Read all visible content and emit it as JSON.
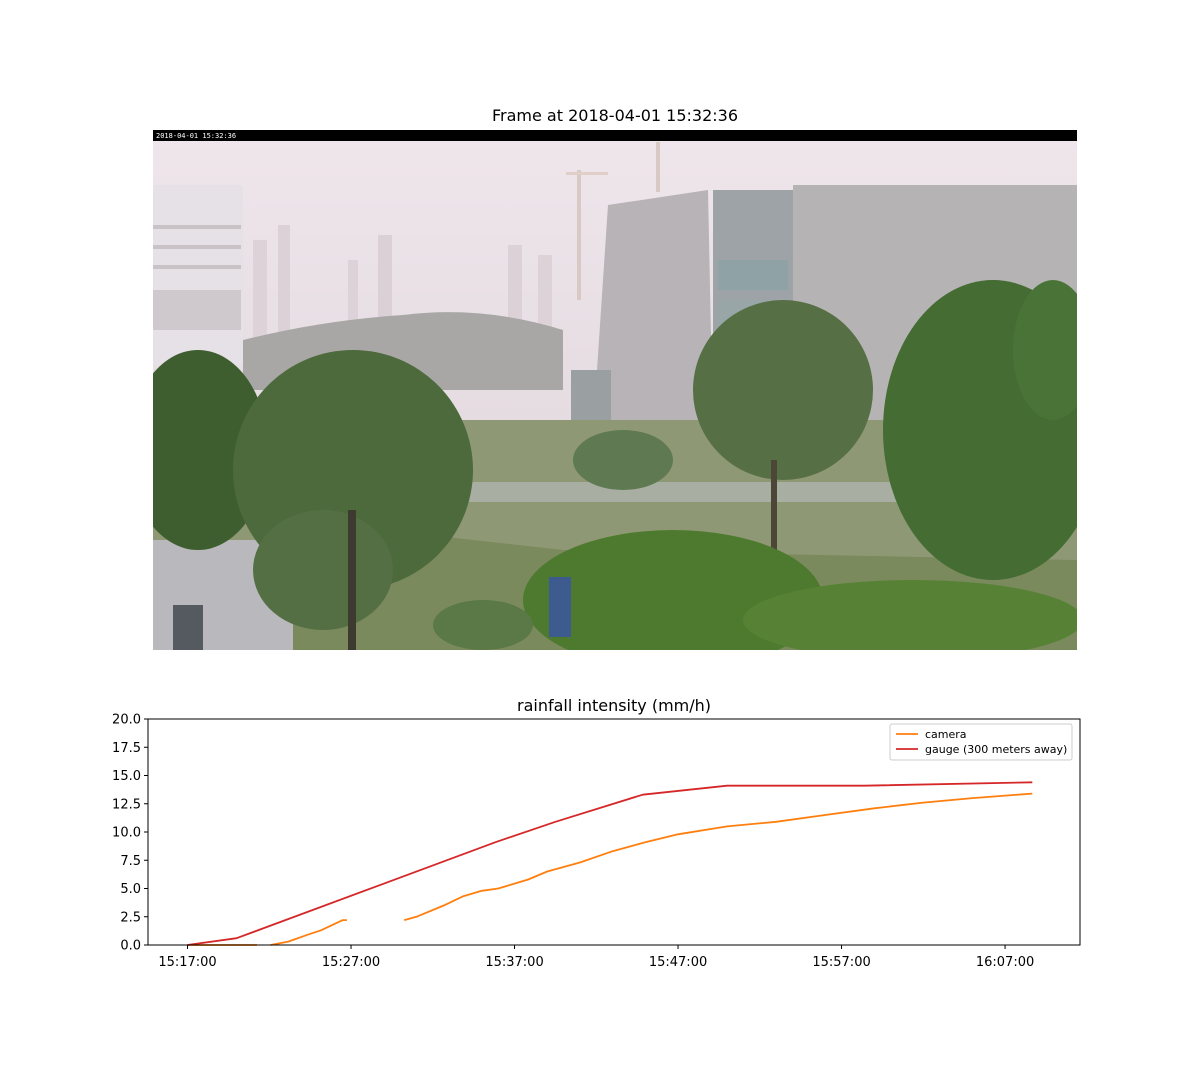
{
  "frame": {
    "title": "Frame at 2018-04-01 15:32:36",
    "overlay_timestamp": "2018-04-01 15:32:36"
  },
  "chart_data": {
    "type": "line",
    "title": "rainfall intensity (mm/h)",
    "xlabel": "",
    "ylabel": "",
    "x_ticks": [
      "15:17:00",
      "15:27:00",
      "15:37:00",
      "15:47:00",
      "15:57:00",
      "16:07:00"
    ],
    "y_ticks": [
      "0.0",
      "2.5",
      "5.0",
      "7.5",
      "10.0",
      "12.5",
      "15.0",
      "17.5",
      "20.0"
    ],
    "xlim": [
      "15:14:35",
      "16:11:35"
    ],
    "ylim": [
      0,
      20
    ],
    "legend_position": "upper right",
    "grid": false,
    "series": [
      {
        "name": "camera",
        "color": "#ff7f0e",
        "segments": [
          [
            [
              "15:17:00",
              0.0
            ],
            [
              "15:21:15",
              0.0
            ]
          ],
          [
            [
              "15:22:05",
              0.0
            ],
            [
              "15:23:10",
              0.3
            ],
            [
              "15:24:20",
              0.9
            ],
            [
              "15:25:10",
              1.3
            ],
            [
              "15:26:30",
              2.2
            ],
            [
              "15:26:45",
              2.2
            ]
          ],
          [
            [
              "15:30:15",
              2.2
            ],
            [
              "15:31:00",
              2.5
            ],
            [
              "15:32:40",
              3.5
            ],
            [
              "15:33:50",
              4.3
            ],
            [
              "15:35:00",
              4.8
            ],
            [
              "15:36:00",
              5.0
            ],
            [
              "15:37:50",
              5.8
            ],
            [
              "15:39:00",
              6.5
            ],
            [
              "15:41:00",
              7.3
            ],
            [
              "15:43:00",
              8.3
            ],
            [
              "15:45:00",
              9.1
            ],
            [
              "15:47:00",
              9.8
            ],
            [
              "15:50:00",
              10.5
            ],
            [
              "15:53:00",
              10.9
            ],
            [
              "15:56:00",
              11.5
            ],
            [
              "15:59:00",
              12.1
            ],
            [
              "16:02:00",
              12.6
            ],
            [
              "16:05:00",
              13.0
            ],
            [
              "16:08:40",
              13.4
            ]
          ]
        ]
      },
      {
        "name": "gauge (300 meters away)",
        "color": "#d62728",
        "segments": [
          [
            [
              "15:17:00",
              0.0
            ],
            [
              "15:20:00",
              0.6
            ],
            [
              "15:35:50",
              9.1
            ],
            [
              "15:39:30",
              10.9
            ],
            [
              "15:44:50",
              13.3
            ],
            [
              "15:50:00",
              14.1
            ],
            [
              "15:58:20",
              14.1
            ],
            [
              "16:08:40",
              14.4
            ]
          ]
        ]
      }
    ]
  }
}
